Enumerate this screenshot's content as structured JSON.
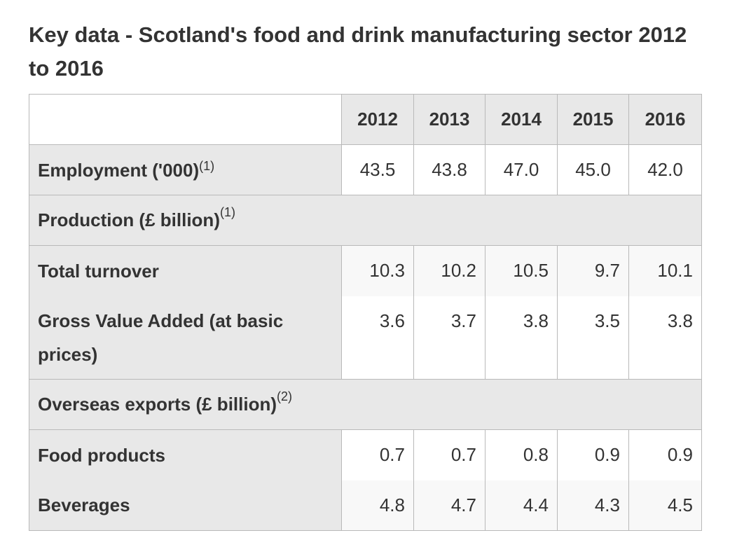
{
  "title": "Key data - Scotland's food and drink manufacturing sector 2012 to 2016",
  "years": [
    "2012",
    "2013",
    "2014",
    "2015",
    "2016"
  ],
  "rows": {
    "employment": {
      "label": "Employment ('000)",
      "note": "(1)",
      "values": [
        "43.5",
        "43.8",
        "47.0",
        "45.0",
        "42.0"
      ]
    },
    "production": {
      "label": "Production (£ billion)",
      "note": "(1)"
    },
    "turnover": {
      "label": "Total turnover",
      "values": [
        "10.3",
        "10.2",
        "10.5",
        "9.7",
        "10.1"
      ]
    },
    "gva": {
      "label": "Gross Value Added (at basic prices)",
      "values": [
        "3.6",
        "3.7",
        "3.8",
        "3.5",
        "3.8"
      ]
    },
    "exports": {
      "label": "Overseas exports (£ billion)",
      "note": "(2)"
    },
    "food": {
      "label": "Food products",
      "values": [
        "0.7",
        "0.7",
        "0.8",
        "0.9",
        "0.9"
      ]
    },
    "beverages": {
      "label": "Beverages",
      "values": [
        "4.8",
        "4.7",
        "4.4",
        "4.3",
        "4.5"
      ]
    }
  }
}
